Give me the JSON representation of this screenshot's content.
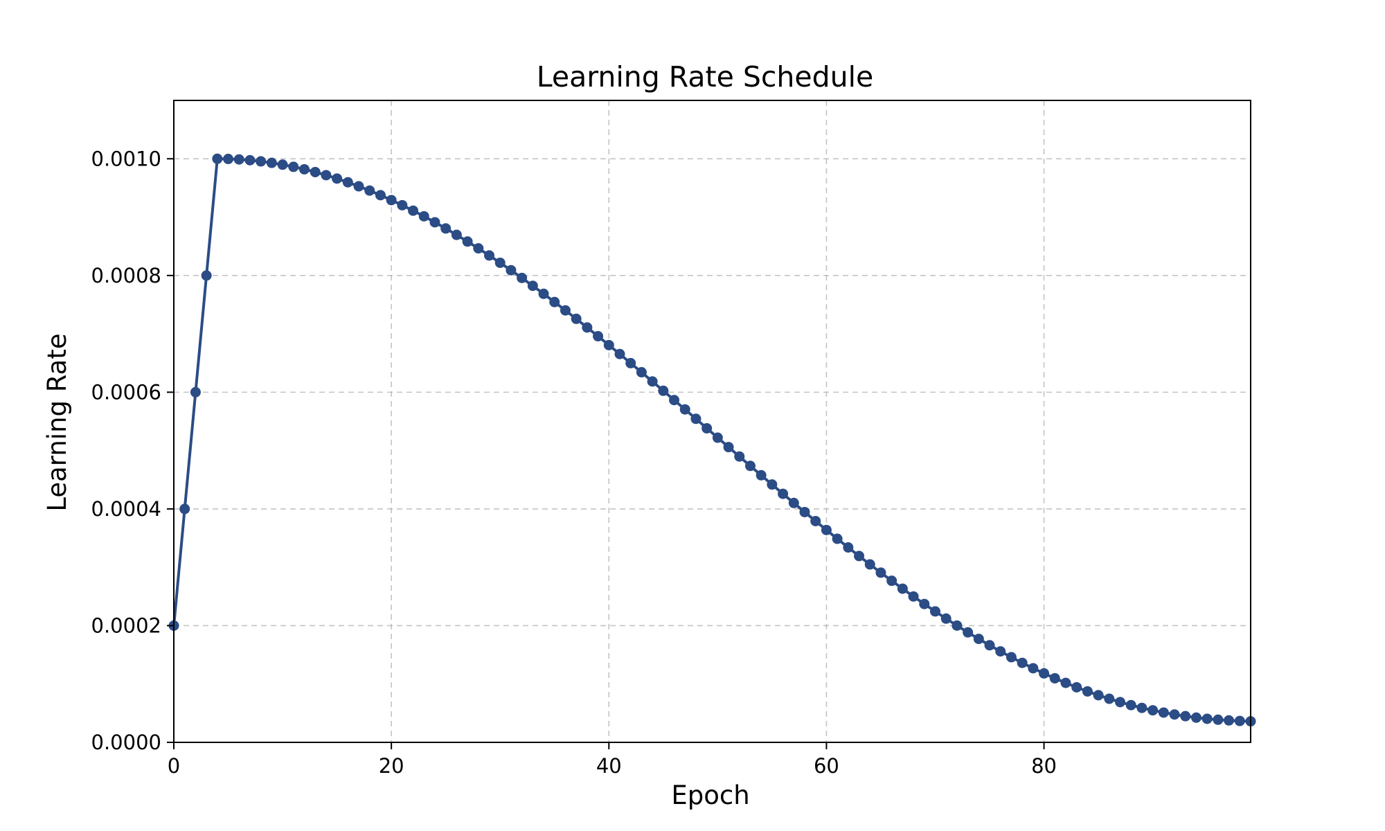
{
  "chart_data": {
    "type": "line",
    "title": "Learning Rate Schedule",
    "xlabel": "Epoch",
    "ylabel": "Learning Rate",
    "xlim": [
      0,
      99
    ],
    "ylim": [
      0,
      0.0011
    ],
    "xticks": [
      0,
      20,
      40,
      60,
      80
    ],
    "xtick_labels": [
      "0",
      "20",
      "40",
      "60",
      "80"
    ],
    "yticks": [
      0,
      0.0002,
      0.0004,
      0.0006,
      0.0008,
      0.001
    ],
    "ytick_labels": [
      "0.0000",
      "0.0002",
      "0.0004",
      "0.0006",
      "0.0008",
      "0.0010"
    ],
    "grid": true,
    "series": [
      {
        "color": "#2b4c85",
        "marker": "circle",
        "x": [
          0,
          1,
          2,
          3,
          4,
          5,
          6,
          7,
          8,
          9,
          10,
          11,
          12,
          13,
          14,
          15,
          16,
          17,
          18,
          19,
          20,
          21,
          22,
          23,
          24,
          25,
          26,
          27,
          28,
          29,
          30,
          31,
          32,
          33,
          34,
          35,
          36,
          37,
          38,
          39,
          40,
          41,
          42,
          43,
          44,
          45,
          46,
          47,
          48,
          49,
          50,
          51,
          52,
          53,
          54,
          55,
          56,
          57,
          58,
          59,
          60,
          61,
          62,
          63,
          64,
          65,
          66,
          67,
          68,
          69,
          70,
          71,
          72,
          73,
          74,
          75,
          76,
          77,
          78,
          79,
          80,
          81,
          82,
          83,
          84,
          85,
          86,
          87,
          88,
          89,
          90,
          91,
          92,
          93,
          94,
          95,
          96,
          97,
          98,
          99
        ],
        "y": [
          0.0002,
          0.0004,
          0.0006,
          0.0008,
          0.001,
          0.0009997,
          0.0009989,
          0.0009975,
          0.0009955,
          0.000993,
          0.0009899,
          0.0009862,
          0.000982,
          0.0009772,
          0.0009719,
          0.0009661,
          0.0009597,
          0.0009528,
          0.0009455,
          0.0009376,
          0.0009292,
          0.0009204,
          0.0009111,
          0.0009014,
          0.0008912,
          0.0008806,
          0.0008696,
          0.0008582,
          0.0008465,
          0.0008343,
          0.0008218,
          0.000809,
          0.0007958,
          0.0007823,
          0.0007686,
          0.0007545,
          0.0007402,
          0.0007257,
          0.0007109,
          0.0006959,
          0.0006807,
          0.0006654,
          0.0006498,
          0.0006342,
          0.0006184,
          0.0006025,
          0.0005865,
          0.0005705,
          0.0005544,
          0.0005382,
          0.0005221,
          0.0005059,
          0.0004898,
          0.0004737,
          0.0004577,
          0.0004418,
          0.0004259,
          0.0004102,
          0.0003946,
          0.0003792,
          0.0003639,
          0.0003488,
          0.000334,
          0.0003193,
          0.0003049,
          0.0002908,
          0.0002769,
          0.0002633,
          0.00025,
          0.0002371,
          0.0002244,
          0.0002121,
          0.0002001,
          0.0001885,
          0.0001773,
          0.0001664,
          0.0001559,
          0.0001459,
          0.0001362,
          0.000127,
          0.0001182,
          0.0001098,
          0.0001019,
          9.44e-05,
          8.73e-05,
          8.08e-05,
          7.47e-05,
          6.9e-05,
          6.38e-05,
          5.91e-05,
          5.49e-05,
          5.11e-05,
          4.78e-05,
          4.49e-05,
          4.24e-05,
          4.04e-05,
          3.88e-05,
          3.76e-05,
          3.67e-05,
          3.61e-05
        ]
      }
    ]
  }
}
